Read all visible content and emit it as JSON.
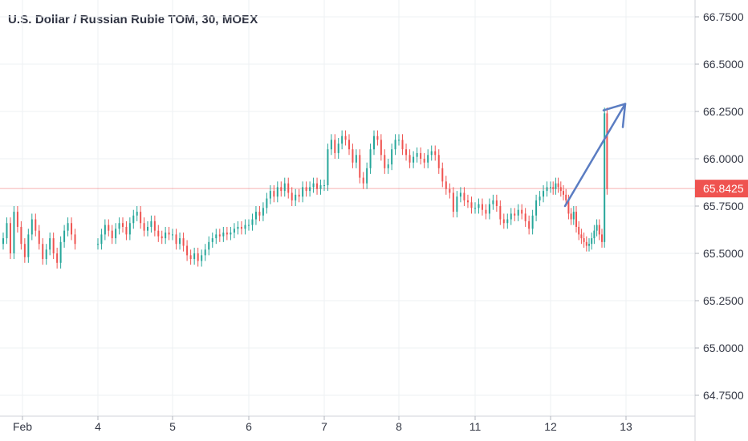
{
  "chart_data": {
    "type": "candlestick",
    "title": "U.S. Dollar / Russian Ruble TOM, 30, MOEX",
    "y_ticks": [
      "66.7500",
      "66.5000",
      "66.2500",
      "66.0000",
      "65.7500",
      "65.5000",
      "65.2500",
      "65.0000",
      "64.7500"
    ],
    "x_ticks": [
      "Feb",
      "4",
      "5",
      "6",
      "7",
      "8",
      "11",
      "12",
      "13"
    ],
    "ylim": [
      64.65,
      66.83
    ],
    "grid": true,
    "last_price": "65.8425",
    "up_color": "#26a69a",
    "down_color": "#ef5350",
    "annotation_color": "#5b7dc2",
    "price_line_color": "#ef5350",
    "series": [
      {
        "day": "Feb",
        "values": [
          65.58,
          65.66,
          65.5,
          65.72,
          65.64,
          65.55,
          65.48,
          65.6,
          65.68,
          65.62,
          65.55,
          65.47,
          65.52,
          65.58,
          65.5,
          65.45,
          65.56,
          65.62,
          65.66,
          65.6,
          65.55
        ]
      },
      {
        "day": "4",
        "values": [
          65.55,
          65.6,
          65.65,
          65.62,
          65.58,
          65.63,
          65.66,
          65.64,
          65.6,
          65.66,
          65.7,
          65.72,
          65.66,
          65.62,
          65.64,
          65.67,
          65.62,
          65.59,
          65.58,
          65.61,
          65.6
        ]
      },
      {
        "day": "5",
        "values": [
          65.6,
          65.55,
          65.58,
          65.54,
          65.49,
          65.47,
          65.5,
          65.46,
          65.49,
          65.52,
          65.56,
          65.58,
          65.6,
          65.59,
          65.61,
          65.6,
          65.61,
          65.63,
          65.64,
          65.63,
          65.65
        ]
      },
      {
        "day": "6",
        "values": [
          65.65,
          65.68,
          65.72,
          65.7,
          65.74,
          65.79,
          65.83,
          65.8,
          65.85,
          65.83,
          65.87,
          65.82,
          65.78,
          65.81,
          65.8,
          65.85,
          65.83,
          65.85,
          65.87,
          65.84,
          65.86
        ]
      },
      {
        "day": "7",
        "values": [
          65.86,
          66.05,
          66.1,
          66.03,
          66.08,
          66.12,
          66.1,
          66.05,
          65.98,
          66.02,
          65.9,
          65.87,
          65.95,
          66.05,
          66.12,
          66.1,
          66.02,
          65.95,
          65.97,
          66.05,
          66.1
        ]
      },
      {
        "day": "8",
        "values": [
          66.1,
          66.05,
          66.02,
          65.98,
          66.01,
          66.03,
          66.0,
          65.98,
          66.02,
          66.04,
          66.02,
          65.95,
          65.88,
          65.84,
          65.82,
          65.72,
          65.8,
          65.82,
          65.78,
          65.77,
          65.74
        ]
      },
      {
        "day": "11",
        "values": [
          65.74,
          65.76,
          65.73,
          65.71,
          65.76,
          65.78,
          65.75,
          65.68,
          65.66,
          65.68,
          65.71,
          65.7,
          65.73,
          65.71,
          65.67,
          65.63,
          65.7,
          65.78,
          65.8,
          65.83,
          65.85
        ]
      },
      {
        "day": "12",
        "values": [
          65.85,
          65.84,
          65.87,
          65.85,
          65.83,
          65.81,
          65.78,
          65.71,
          65.68,
          65.72,
          65.64,
          65.6,
          65.58,
          65.56,
          65.54,
          65.55,
          65.58,
          65.62,
          65.65,
          65.6,
          65.56,
          66.24,
          65.84
        ]
      }
    ],
    "arrow": {
      "from_day": "12",
      "from_value": 65.75,
      "to_day": "13",
      "to_value": 66.29
    }
  }
}
